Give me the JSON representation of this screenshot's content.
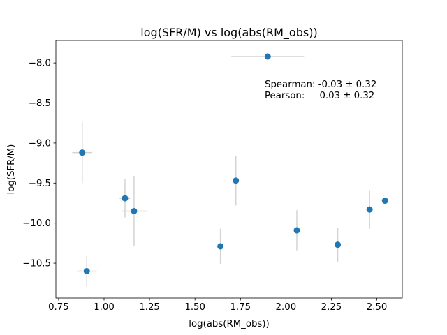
{
  "chart_data": {
    "type": "scatter",
    "title": "log(SFR/M) vs log(abs(RM_obs))",
    "xlabel": "log(abs(RM_obs))",
    "ylabel": "log(SFR/M)",
    "xlim": [
      0.735,
      2.64
    ],
    "ylim": [
      -10.935,
      -7.72
    ],
    "xticks": [
      0.75,
      1.0,
      1.25,
      1.5,
      1.75,
      2.0,
      2.25,
      2.5
    ],
    "xtick_labels": [
      "0.75",
      "1.00",
      "1.25",
      "1.50",
      "1.75",
      "2.00",
      "2.25",
      "2.50"
    ],
    "yticks": [
      -8.0,
      -8.5,
      -9.0,
      -9.5,
      -10.0,
      -10.5
    ],
    "ytick_labels": [
      "−8.0",
      "−8.5",
      "−9.0",
      "−9.5",
      "−10.0",
      "−10.5"
    ],
    "grid": false,
    "marker_color": "#1f77b4",
    "errorbar_color": "#d3d3d3",
    "points": [
      {
        "x": 0.88,
        "y": -9.12,
        "xerr": 0.055,
        "yerr": 0.38
      },
      {
        "x": 0.905,
        "y": -10.6,
        "xerr": 0.055,
        "yerr": 0.19
      },
      {
        "x": 1.115,
        "y": -9.69,
        "xerr": 0.03,
        "yerr": 0.24
      },
      {
        "x": 1.165,
        "y": -9.85,
        "xerr": 0.07,
        "yerr": 0.44
      },
      {
        "x": 1.64,
        "y": -10.29,
        "xerr": 0.0,
        "yerr": 0.22
      },
      {
        "x": 1.725,
        "y": -9.47,
        "xerr": 0.0,
        "yerr": 0.31
      },
      {
        "x": 1.9,
        "y": -7.92,
        "xerr": 0.2,
        "yerr": 0.0
      },
      {
        "x": 2.06,
        "y": -10.09,
        "xerr": 0.0,
        "yerr": 0.25
      },
      {
        "x": 2.285,
        "y": -10.27,
        "xerr": 0.0,
        "yerr": 0.21
      },
      {
        "x": 2.46,
        "y": -9.83,
        "xerr": 0.0,
        "yerr": 0.24
      },
      {
        "x": 2.545,
        "y": -9.72,
        "xerr": 0.0,
        "yerr": 0.0
      }
    ],
    "annotations": [
      {
        "text": "Spearman: -0.03 ± 0.32"
      },
      {
        "text": "Pearson:     0.03 ± 0.32"
      }
    ]
  }
}
